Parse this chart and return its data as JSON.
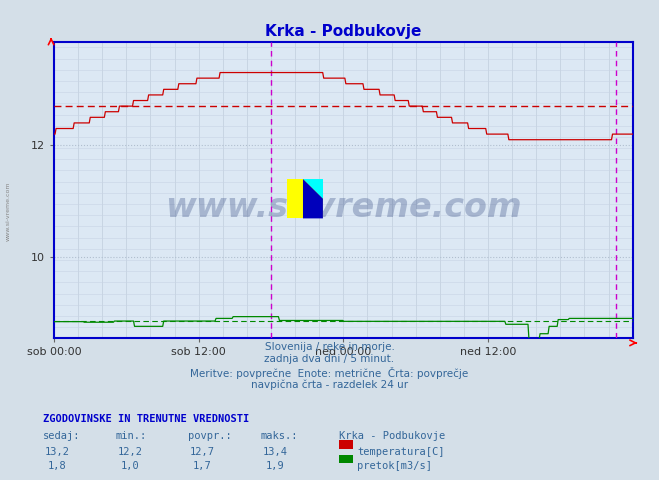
{
  "title": "Krka - Podbukovje",
  "title_color": "#0000cc",
  "bg_color": "#d4dfe8",
  "plot_bg_color": "#dce8f4",
  "y_min": 8.55,
  "y_max": 13.85,
  "y_ticks": [
    10,
    12
  ],
  "x_tick_labels": [
    "sob 00:00",
    "sob 12:00",
    "ned 00:00",
    "ned 12:00"
  ],
  "x_tick_positions": [
    0.0,
    0.25,
    0.5,
    0.75
  ],
  "vline1": 0.375,
  "vline2": 0.972,
  "temp_color": "#cc0000",
  "flow_color": "#008800",
  "avg_temp_color": "#cc0000",
  "vline_color": "#cc00cc",
  "border_color": "#0000cc",
  "watermark": "www.si-vreme.com",
  "watermark_color": "#1a3370",
  "watermark_alpha": 0.28,
  "subtitle_color": "#336699",
  "subtitle_lines": [
    "Slovenija / reke in morje.",
    "zadnja dva dni / 5 minut.",
    "Meritve: povprečne  Enote: metrične  Črta: povprečje",
    "navpična črta - razdelek 24 ur"
  ],
  "table_header": "ZGODOVINSKE IN TRENUTNE VREDNOSTI",
  "col_headers": [
    "sedaj:",
    "min.:",
    "povpr.:",
    "maks.:",
    "Krka - Podbukovje"
  ],
  "row1_vals": [
    "13,2",
    "12,2",
    "12,7",
    "13,4"
  ],
  "row2_vals": [
    "1,8",
    "1,0",
    "1,7",
    "1,9"
  ],
  "legend_colors": [
    "#cc0000",
    "#008800"
  ],
  "legend_labels": [
    "temperatura[C]",
    "pretok[m3/s]"
  ],
  "temp_avg": 12.7,
  "flow_avg_display": 8.86,
  "n_points": 576
}
